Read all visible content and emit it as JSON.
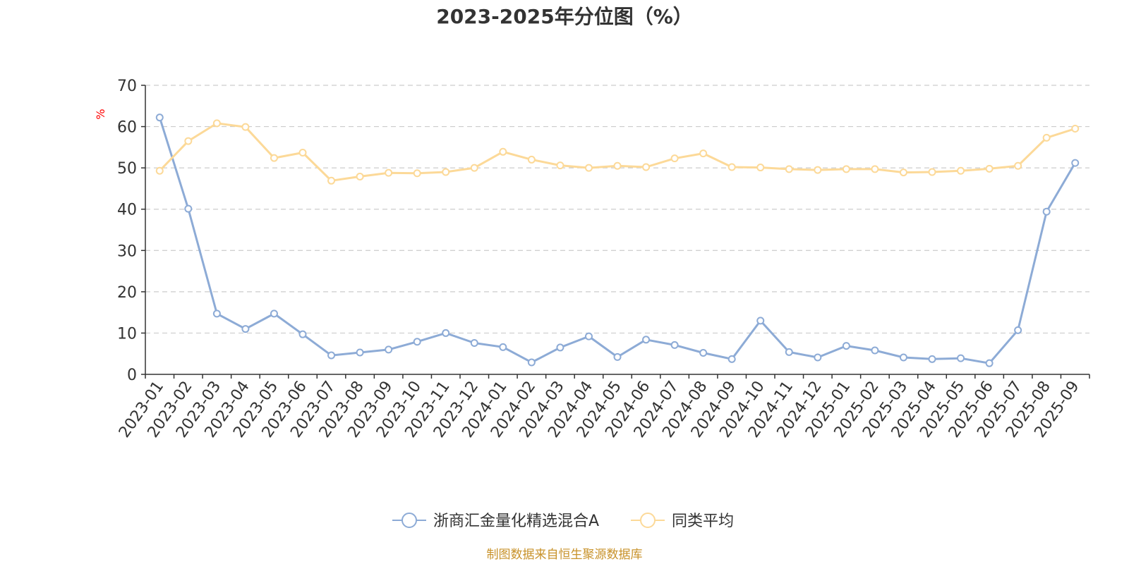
{
  "source_note": "制图数据来自恒生聚源数据库",
  "colors": {
    "series_1": "#8dabd6",
    "series_2": "#fcd998",
    "grid": "#cccccc",
    "axis": "#333333",
    "ylabel": "#ff0000",
    "source": "#c8922a"
  },
  "chart_data": {
    "type": "line",
    "title": "2023-2025年分位图（%）",
    "ylabel": "%",
    "ylim": [
      0,
      70
    ],
    "yticks": [
      0,
      10,
      20,
      30,
      40,
      50,
      60,
      70
    ],
    "grid": true,
    "legend_position": "bottom-center",
    "categories": [
      "2023-01",
      "2023-02",
      "2023-03",
      "2023-04",
      "2023-05",
      "2023-06",
      "2023-07",
      "2023-08",
      "2023-09",
      "2023-10",
      "2023-11",
      "2023-12",
      "2024-01",
      "2024-02",
      "2024-03",
      "2024-04",
      "2024-05",
      "2024-06",
      "2024-07",
      "2024-08",
      "2024-09",
      "2024-10",
      "2024-11",
      "2024-12",
      "2025-01",
      "2025-02",
      "2025-03",
      "2025-04",
      "2025-05",
      "2025-06",
      "2025-07",
      "2025-08",
      "2025-09"
    ],
    "series": [
      {
        "name": "浙商汇金量化精选混合A",
        "values": [
          62.2,
          40.1,
          14.7,
          11.0,
          14.7,
          9.7,
          4.6,
          5.3,
          6.0,
          7.9,
          10.0,
          7.6,
          6.6,
          2.9,
          6.5,
          9.2,
          4.2,
          8.4,
          7.1,
          5.2,
          3.7,
          13.0,
          5.4,
          4.1,
          6.9,
          5.8,
          4.1,
          3.7,
          3.9,
          2.7,
          10.7,
          39.4,
          51.2
        ]
      },
      {
        "name": "同类平均",
        "values": [
          49.3,
          56.5,
          60.8,
          59.9,
          52.4,
          53.7,
          46.9,
          47.9,
          48.8,
          48.7,
          49.0,
          50.0,
          53.9,
          52.0,
          50.6,
          50.0,
          50.5,
          50.2,
          52.3,
          53.5,
          50.2,
          50.1,
          49.7,
          49.5,
          49.7,
          49.7,
          48.9,
          49.0,
          49.3,
          49.8,
          50.5,
          57.3,
          59.5
        ]
      }
    ]
  }
}
